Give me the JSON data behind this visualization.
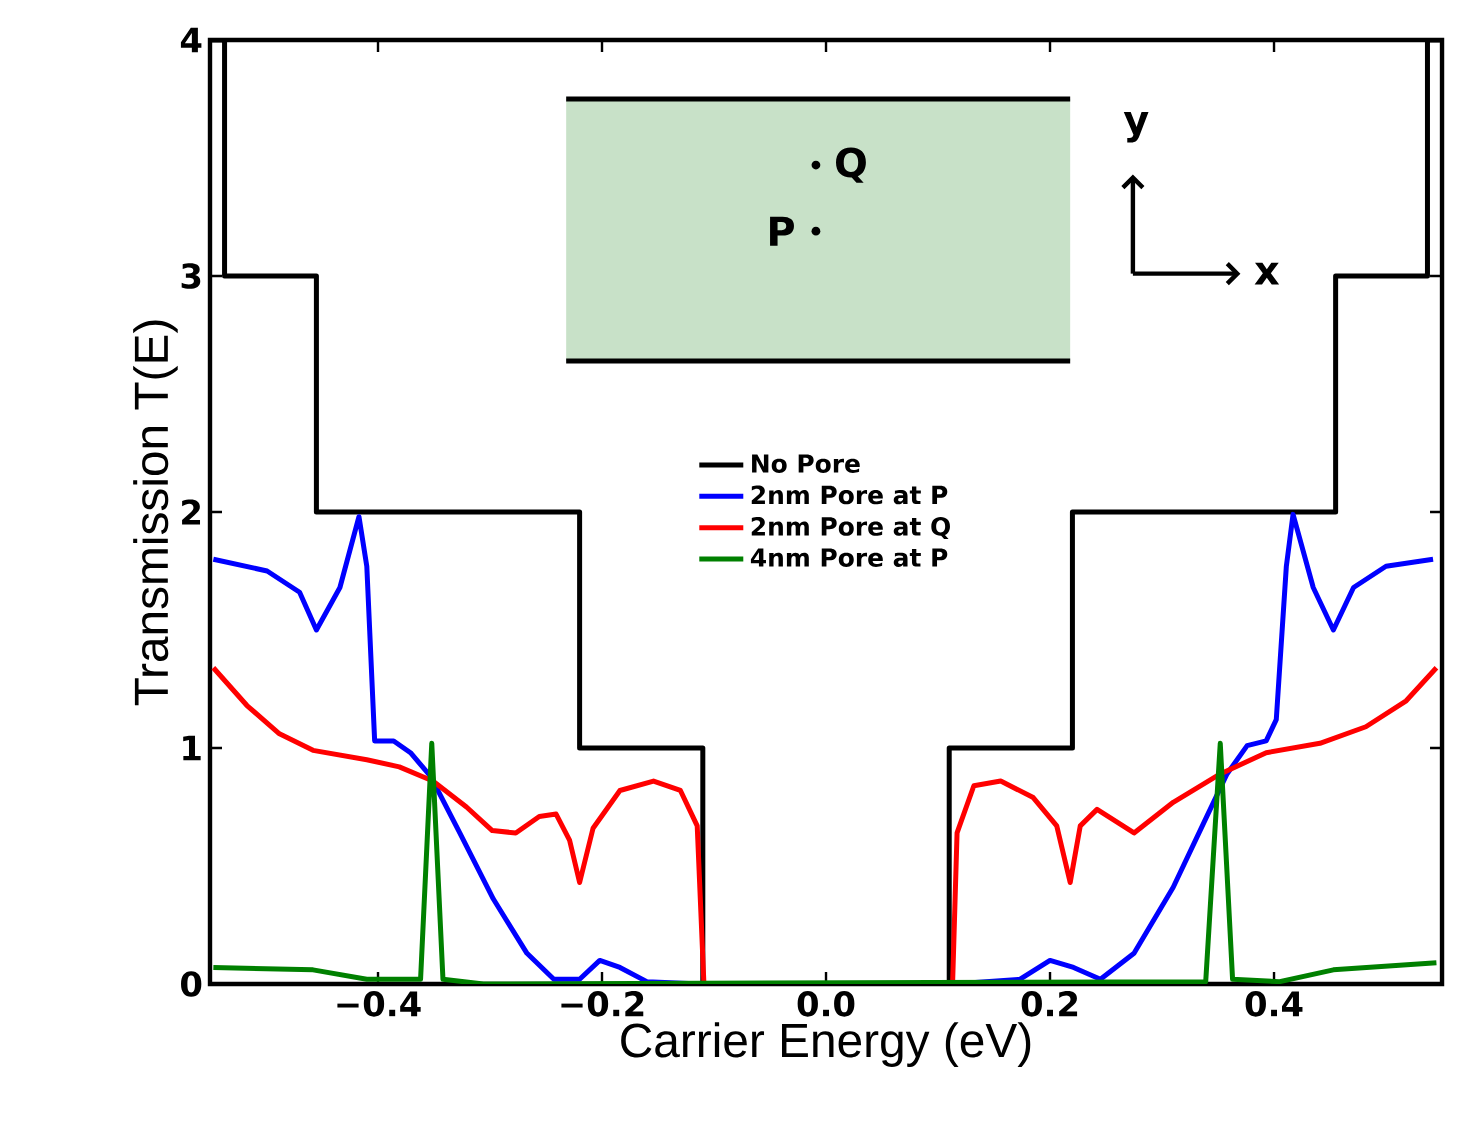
{
  "chart_data": {
    "type": "line",
    "xlabel": "Carrier Energy (eV)",
    "ylabel": "Transmission T(E)",
    "xlim": [
      -0.55,
      0.55
    ],
    "ylim": [
      0,
      4
    ],
    "xticks": [
      {
        "value": -0.4,
        "label": "−0.4"
      },
      {
        "value": -0.2,
        "label": "−0.2"
      },
      {
        "value": 0,
        "label": "0.0"
      },
      {
        "value": 0.2,
        "label": "0.2"
      },
      {
        "value": 0.4,
        "label": "0.4"
      }
    ],
    "yticks": [
      0,
      1,
      2,
      3,
      4
    ],
    "legend": "center",
    "marker": "none",
    "grid": false,
    "annotations": [
      "P",
      "Q",
      "y",
      "x"
    ],
    "series": [
      {
        "name": "No Pore",
        "type": "step",
        "color": "#000000",
        "x": [
          -0.55,
          -0.537,
          -0.455,
          -0.22,
          -0.11,
          0.11,
          0.22,
          0.455,
          0.537,
          0.55
        ],
        "values": [
          4,
          3,
          2,
          1,
          0,
          1,
          2,
          3,
          4,
          4
        ]
      },
      {
        "name": "2nm Pore at P",
        "color": "#0000ff",
        "x": [
          -0.547,
          -0.499,
          -0.47,
          -0.455,
          -0.434,
          -0.417,
          -0.41,
          -0.403,
          -0.386,
          -0.371,
          -0.353,
          -0.327,
          -0.297,
          -0.267,
          -0.243,
          -0.22,
          -0.202,
          -0.184,
          -0.16,
          -0.112,
          0.114,
          0.173,
          0.2,
          0.221,
          0.245,
          0.275,
          0.31,
          0.34,
          0.358,
          0.376,
          0.393,
          0.402,
          0.411,
          0.417,
          0.435,
          0.453,
          0.471,
          0.5,
          0.542
        ],
        "values": [
          1.8,
          1.75,
          1.66,
          1.5,
          1.68,
          1.98,
          1.77,
          1.03,
          1.03,
          0.98,
          0.88,
          0.64,
          0.36,
          0.13,
          0.02,
          0.02,
          0.1,
          0.07,
          0.01,
          0,
          0,
          0.02,
          0.1,
          0.07,
          0.02,
          0.13,
          0.41,
          0.71,
          0.89,
          1.01,
          1.03,
          1.12,
          1.77,
          1.99,
          1.68,
          1.5,
          1.68,
          1.77,
          1.8
        ]
      },
      {
        "name": "2nm Pore at Q",
        "color": "#ff0000",
        "x": [
          -0.547,
          -0.517,
          -0.488,
          -0.458,
          -0.41,
          -0.381,
          -0.351,
          -0.321,
          -0.298,
          -0.277,
          -0.256,
          -0.241,
          -0.229,
          -0.22,
          -0.208,
          -0.184,
          -0.154,
          -0.13,
          -0.115,
          -0.109,
          0.113,
          0.117,
          0.132,
          0.156,
          0.185,
          0.206,
          0.218,
          0.227,
          0.242,
          0.275,
          0.31,
          0.352,
          0.393,
          0.441,
          0.482,
          0.518,
          0.545
        ],
        "values": [
          1.34,
          1.18,
          1.06,
          0.99,
          0.95,
          0.92,
          0.86,
          0.75,
          0.65,
          0.64,
          0.71,
          0.72,
          0.61,
          0.43,
          0.66,
          0.82,
          0.86,
          0.82,
          0.67,
          0,
          0,
          0.64,
          0.84,
          0.86,
          0.79,
          0.67,
          0.43,
          0.67,
          0.74,
          0.64,
          0.77,
          0.89,
          0.98,
          1.02,
          1.09,
          1.2,
          1.34
        ]
      },
      {
        "name": "4nm Pore at P",
        "color": "#008000",
        "x": [
          -0.547,
          -0.458,
          -0.41,
          -0.362,
          -0.352,
          -0.342,
          -0.306,
          0.339,
          0.352,
          0.363,
          0.405,
          0.453,
          0.545
        ],
        "values": [
          0.07,
          0.06,
          0.02,
          0.02,
          1.02,
          0.02,
          0,
          0.01,
          1.02,
          0.02,
          0.01,
          0.06,
          0.09
        ]
      }
    ]
  }
}
